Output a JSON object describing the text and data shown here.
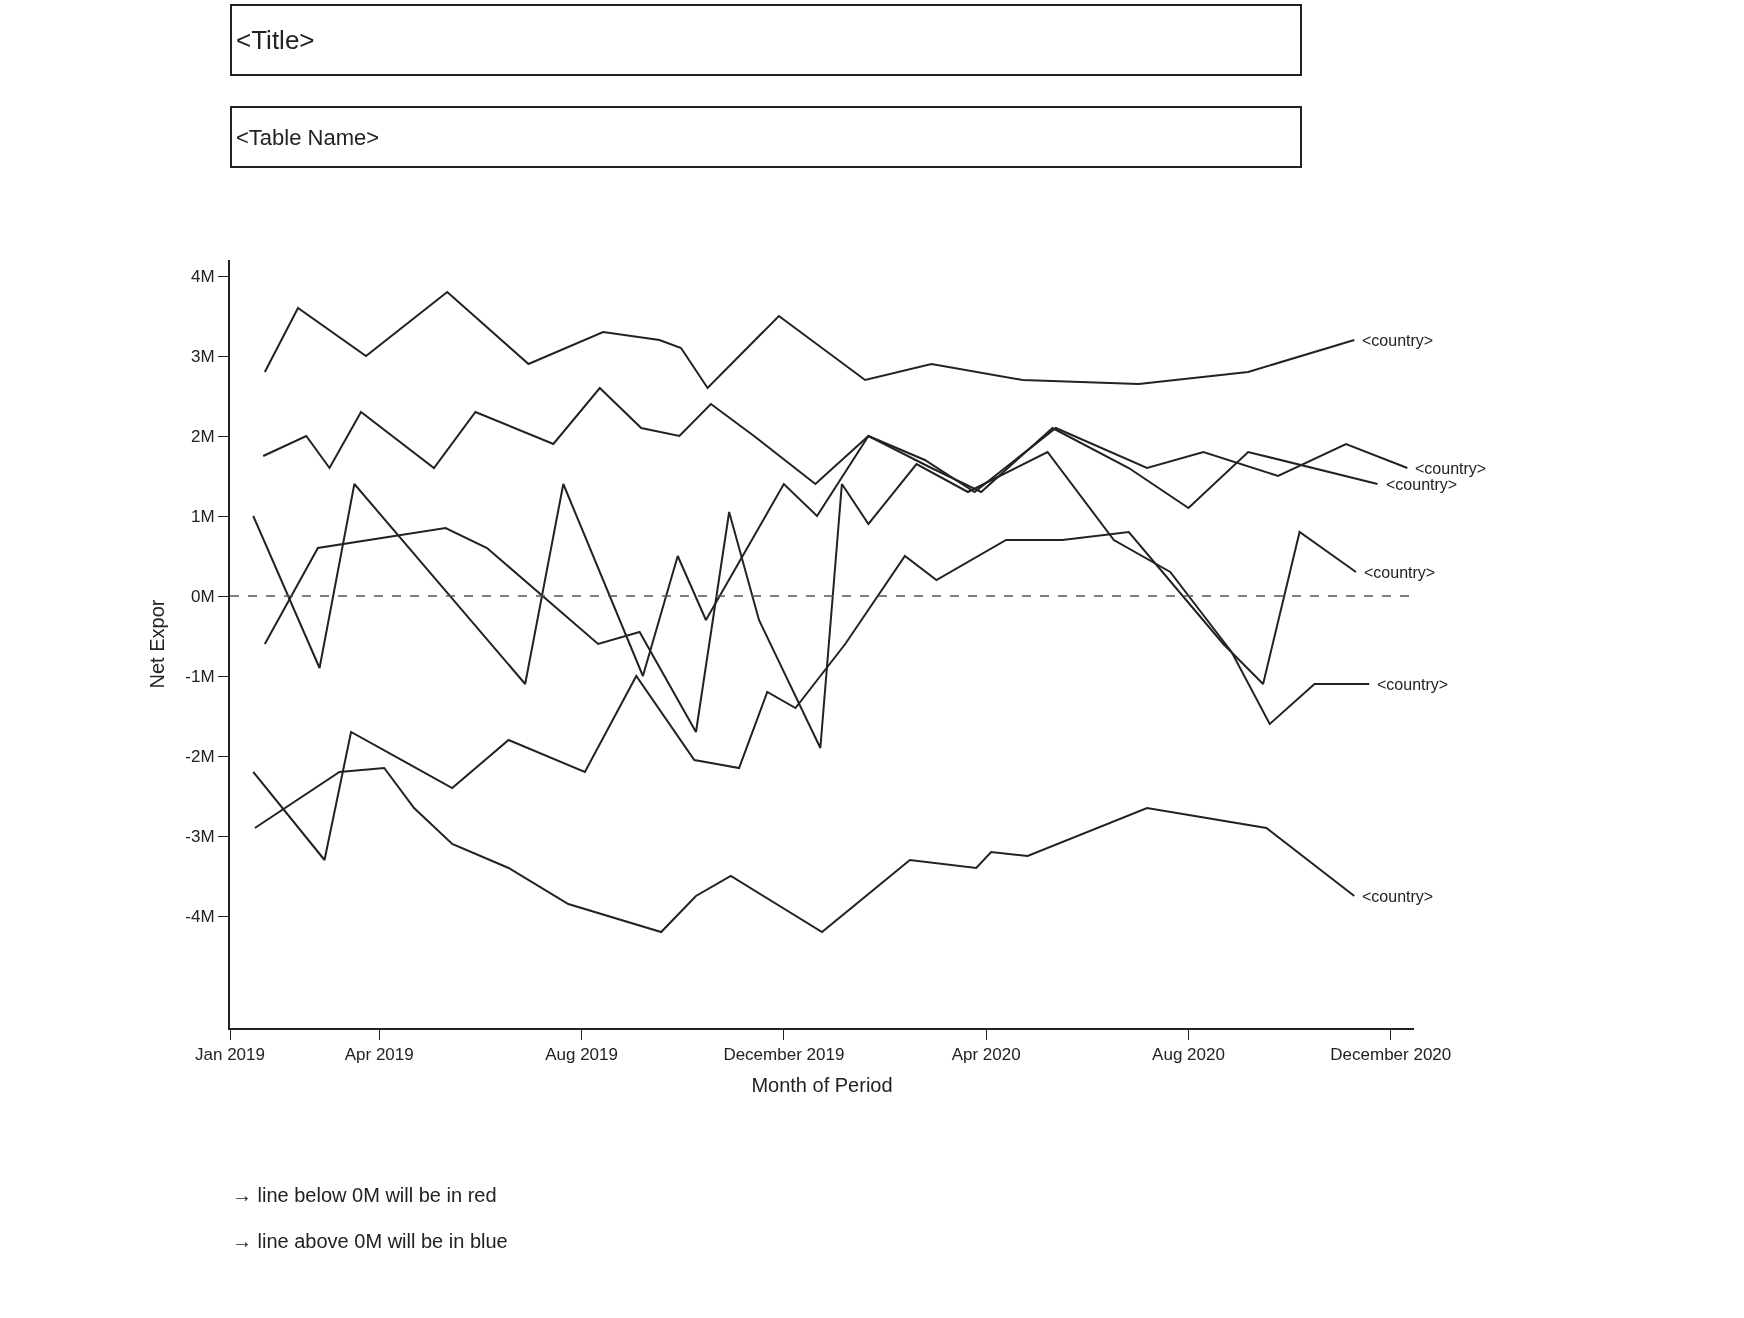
{
  "chart_data": {
    "type": "line",
    "title": "<Title>",
    "subtitle": "<Table Name>",
    "xlabel": "Month of Period",
    "ylabel": "Net Expor",
    "xlim": [
      "2019-01-01",
      "2020-12-15"
    ],
    "xticks": [
      {
        "value": "2019-01-01",
        "label": "Jan 2019"
      },
      {
        "value": "2019-04-01",
        "label": "Apr 2019"
      },
      {
        "value": "2019-08-01",
        "label": "Aug 2019"
      },
      {
        "value": "2019-12-01",
        "label": "December 2019"
      },
      {
        "value": "2020-04-01",
        "label": "Apr 2020"
      },
      {
        "value": "2020-08-01",
        "label": "Aug 2020"
      },
      {
        "value": "2020-12-01",
        "label": "December 2020"
      }
    ],
    "ylim": [
      -5.4,
      4.2
    ],
    "yticks": [
      {
        "value": 4,
        "label": "4M"
      },
      {
        "value": 3,
        "label": "3M"
      },
      {
        "value": 2,
        "label": "2M"
      },
      {
        "value": 1,
        "label": "1M"
      },
      {
        "value": 0,
        "label": "0M"
      },
      {
        "value": -1,
        "label": "-1M"
      },
      {
        "value": -2,
        "label": "-2M"
      },
      {
        "value": -3,
        "label": "-3M"
      },
      {
        "value": -4,
        "label": "-4M"
      }
    ],
    "legend": false,
    "marker": "none",
    "line_style": "solid",
    "ref_lines": [
      {
        "axis": "y",
        "value": 0,
        "label": null,
        "line_style": "dashed",
        "color": "#555555"
      }
    ],
    "series": [
      {
        "name": "<country>",
        "color": "#222222",
        "x": [
          "2019-01-22",
          "2019-02-11",
          "2019-03-24",
          "2019-05-12",
          "2019-06-30",
          "2019-08-14",
          "2019-09-17",
          "2019-09-30",
          "2019-10-16",
          "2019-11-28",
          "2020-01-19",
          "2020-02-28",
          "2020-04-23",
          "2020-07-02",
          "2020-09-06",
          "2020-11-09"
        ],
        "values": [
          2.8,
          3.6,
          3.0,
          3.8,
          2.9,
          3.3,
          3.2,
          3.1,
          2.6,
          3.5,
          2.7,
          2.9,
          2.7,
          2.65,
          2.8,
          3.2
        ]
      },
      {
        "name": "<country>",
        "color": "#222222",
        "x": [
          "2019-01-21",
          "2019-02-16",
          "2019-03-02",
          "2019-03-21",
          "2019-05-04",
          "2019-05-29",
          "2019-07-15",
          "2019-08-12",
          "2019-09-06",
          "2019-09-29",
          "2019-10-18",
          "2019-11-13",
          "2019-12-20",
          "2020-01-21",
          "2020-02-24",
          "2020-03-25",
          "2020-05-13",
          "2020-07-07",
          "2020-08-10",
          "2020-09-24",
          "2020-11-04",
          "2020-12-11"
        ],
        "values": [
          1.75,
          2.0,
          1.6,
          2.3,
          1.6,
          2.3,
          1.9,
          2.6,
          2.1,
          2.0,
          2.4,
          2.0,
          1.4,
          2.0,
          1.7,
          1.3,
          2.1,
          1.6,
          1.8,
          1.5,
          1.9,
          1.6
        ]
      },
      {
        "name": "<country>",
        "color": "#222222",
        "x": [
          "2019-01-15",
          "2019-02-24",
          "2019-03-17",
          "2019-06-28",
          "2019-07-21",
          "2019-09-07",
          "2019-09-28",
          "2019-10-15",
          "2019-12-01",
          "2019-12-21",
          "2020-01-21",
          "2020-02-28",
          "2020-03-29",
          "2020-05-11",
          "2020-06-26",
          "2020-08-01",
          "2020-09-06",
          "2020-11-23"
        ],
        "values": [
          1.0,
          -0.9,
          1.4,
          -1.1,
          1.4,
          -1.0,
          0.5,
          -0.3,
          1.4,
          1.0,
          2.0,
          1.6,
          1.3,
          2.1,
          1.6,
          1.1,
          1.8,
          1.4
        ]
      },
      {
        "name": "<country>",
        "color": "#222222",
        "x": [
          "2019-01-15",
          "2019-02-27",
          "2019-03-15",
          "2019-05-15",
          "2019-06-18",
          "2019-08-03",
          "2019-09-03",
          "2019-10-08",
          "2019-11-04",
          "2019-11-21",
          "2019-12-08",
          "2020-01-07",
          "2020-02-12",
          "2020-03-02",
          "2020-04-13",
          "2020-05-17",
          "2020-06-26",
          "2020-08-22",
          "2020-09-15",
          "2020-10-07",
          "2020-11-10"
        ],
        "values": [
          -2.2,
          -3.3,
          -1.7,
          -2.4,
          -1.8,
          -2.2,
          -1.0,
          -2.05,
          -2.15,
          -1.2,
          -1.4,
          -0.6,
          0.5,
          0.2,
          0.7,
          0.7,
          0.8,
          -0.6,
          -1.1,
          0.8,
          0.3
        ]
      },
      {
        "name": "<country>",
        "color": "#222222",
        "x": [
          "2019-01-22",
          "2019-02-23",
          "2019-05-11",
          "2019-06-05",
          "2019-08-11",
          "2019-09-05",
          "2019-10-09",
          "2019-10-29",
          "2019-11-16",
          "2019-12-23",
          "2020-01-05",
          "2020-01-21",
          "2020-02-19",
          "2020-03-21",
          "2020-05-08",
          "2020-06-17",
          "2020-07-21",
          "2020-08-27",
          "2020-09-19",
          "2020-10-16",
          "2020-11-18"
        ],
        "values": [
          -0.6,
          0.6,
          0.85,
          0.6,
          -0.6,
          -0.45,
          -1.7,
          1.05,
          -0.3,
          -1.9,
          1.4,
          0.9,
          1.65,
          1.3,
          1.8,
          0.7,
          0.3,
          -0.7,
          -1.6,
          -1.1,
          -1.1
        ]
      },
      {
        "name": "<country>",
        "color": "#222222",
        "x": [
          "2019-01-16",
          "2019-03-08",
          "2019-04-04",
          "2019-04-22",
          "2019-05-15",
          "2019-06-18",
          "2019-07-24",
          "2019-09-18",
          "2019-10-09",
          "2019-10-30",
          "2019-12-24",
          "2020-02-15",
          "2020-03-26",
          "2020-04-04",
          "2020-04-26",
          "2020-07-07",
          "2020-09-17",
          "2020-11-09"
        ],
        "values": [
          -2.9,
          -2.2,
          -2.15,
          -2.65,
          -3.1,
          -3.4,
          -3.85,
          -4.2,
          -3.75,
          -3.5,
          -4.2,
          -3.3,
          -3.4,
          -3.2,
          -3.25,
          -2.65,
          -2.9,
          -3.75
        ]
      }
    ],
    "annotations": [
      "→ line below 0M will be in red",
      "→ line above 0M will be in blue"
    ]
  }
}
